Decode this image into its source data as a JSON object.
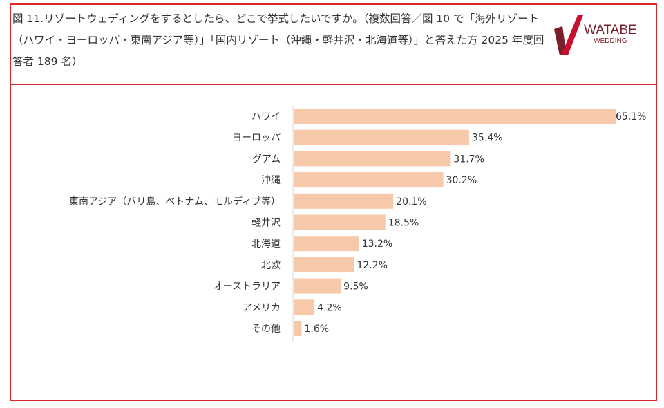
{
  "title": "図 11.リゾートウェディングをするとしたら、どこで挙式したいですか。（複数回答／図 10 で「海外リゾート（ハワイ・ヨーロッパ・東南アジア等）」「国内リゾート（沖縄・軽井沢・北海道等）」と答えた方 2025 年度回答者 189 名）",
  "logo": {
    "line1": "WATABE",
    "line2": "WEDDING"
  },
  "colors": {
    "bar": "#f5c9a9",
    "border": "#d9272e",
    "logo": "#c8102e"
  },
  "chart_data": {
    "type": "bar",
    "orientation": "horizontal",
    "categories": [
      "ハワイ",
      "ヨーロッパ",
      "グアム",
      "沖縄",
      "東南アジア（バリ島、ベトナム、モルディブ等）",
      "軽井沢",
      "北海道",
      "北欧",
      "オーストラリア",
      "アメリカ",
      "その他"
    ],
    "values": [
      65.1,
      35.4,
      31.7,
      30.2,
      20.1,
      18.5,
      13.2,
      12.2,
      9.5,
      4.2,
      1.6
    ],
    "value_labels": [
      "65.1%",
      "35.4%",
      "31.7%",
      "30.2%",
      "20.1%",
      "18.5%",
      "13.2%",
      "12.2%",
      "9.5%",
      "4.2%",
      "1.6%"
    ],
    "unit": "%",
    "xlim": [
      0,
      65.1
    ],
    "grid": false,
    "legend": "none"
  }
}
